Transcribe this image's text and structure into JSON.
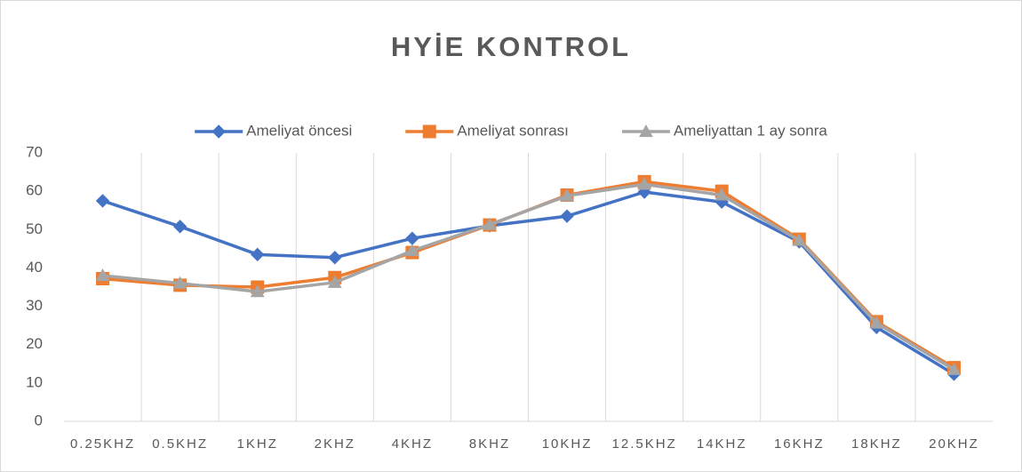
{
  "chart_data": {
    "type": "line",
    "title": "HYİE KONTROL",
    "categories": [
      "0.25KHZ",
      "0.5KHZ",
      "1KHZ",
      "2KHZ",
      "4KHZ",
      "8KHZ",
      "10KHZ",
      "12.5KHZ",
      "14KHZ",
      "16KHZ",
      "18KHZ",
      "20KHZ"
    ],
    "series": [
      {
        "name": "Ameliyat öncesi",
        "color": "#4472c4",
        "marker": "diamond",
        "values": [
          57.5,
          50.8,
          43.5,
          42.7,
          47.7,
          51,
          53.5,
          59.8,
          57.2,
          46.8,
          24.5,
          12.3
        ]
      },
      {
        "name": "Ameliyat sonrası",
        "color": "#ed7d31",
        "marker": "square",
        "values": [
          37.2,
          35.5,
          35,
          37.5,
          44,
          51.2,
          59,
          62.5,
          60,
          47.5,
          26,
          14
        ]
      },
      {
        "name": "Ameliyattan 1 ay sonra",
        "color": "#a5a5a5",
        "marker": "triangle",
        "values": [
          38,
          36,
          33.8,
          36.2,
          44.5,
          51.3,
          58.8,
          61.8,
          59,
          47.2,
          25.6,
          13.5
        ]
      }
    ],
    "ylim": [
      0,
      70
    ],
    "yticks": [
      0,
      10,
      20,
      30,
      40,
      50,
      60,
      70
    ],
    "grid": "x",
    "legend": "top"
  }
}
